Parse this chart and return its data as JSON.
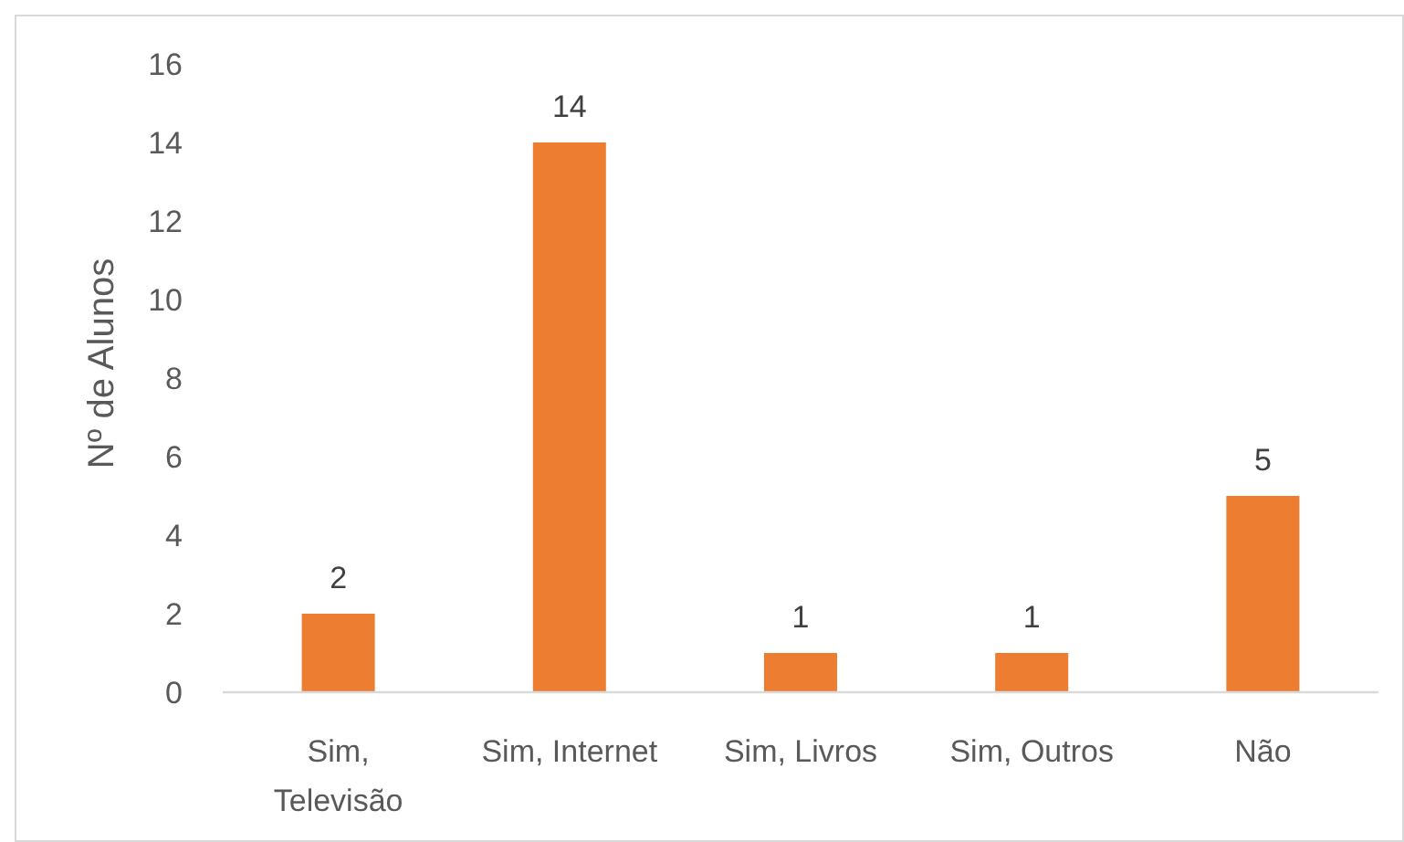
{
  "chart_data": {
    "type": "bar",
    "ylabel": "Nº de Alunos",
    "categories": [
      "Sim, Televisão",
      "Sim, Internet",
      "Sim, Livros",
      "Sim, Outros",
      "Não"
    ],
    "values": [
      2,
      14,
      1,
      1,
      5
    ],
    "color": "#ed7d31",
    "ylim": [
      0,
      16
    ],
    "yticks": [
      0,
      2,
      4,
      6,
      8,
      10,
      12,
      14,
      16
    ],
    "data_labels": true
  }
}
